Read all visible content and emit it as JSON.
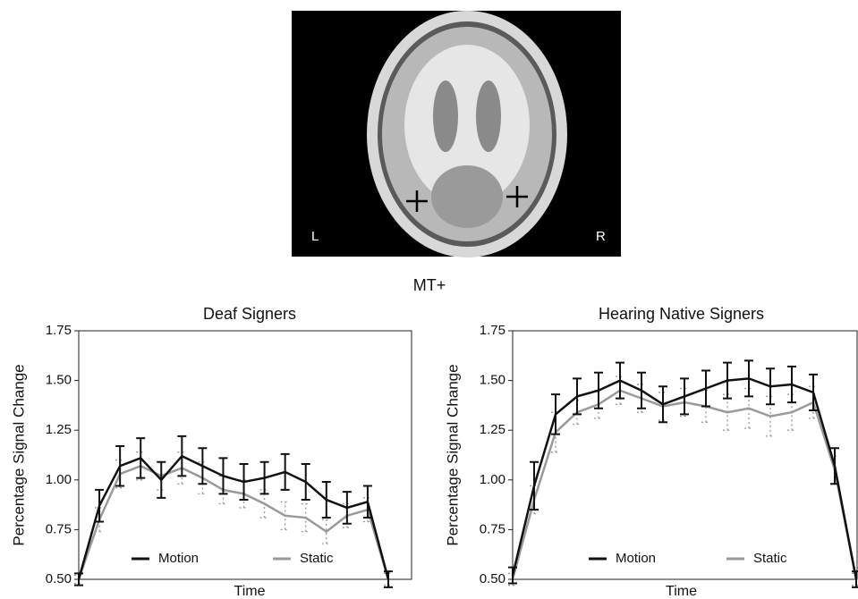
{
  "figure": {
    "title": "MT+",
    "image_labels": {
      "left": "L",
      "right": "R"
    }
  },
  "chart_data": [
    {
      "type": "line",
      "title": "Deaf Signers",
      "x_label": "Time",
      "y_label": "Percentage Signal Change",
      "categories": [
        null,
        null,
        null,
        null,
        null,
        null,
        null,
        null,
        null,
        null,
        null,
        null,
        null,
        null,
        null,
        null
      ],
      "series": [
        {
          "name": "Motion",
          "color": "#111111",
          "values": [
            0.5,
            0.87,
            1.07,
            1.11,
            1.0,
            1.12,
            1.07,
            1.02,
            0.99,
            1.01,
            1.04,
            0.99,
            0.9,
            0.86,
            0.89,
            0.5
          ],
          "errors": [
            0.03,
            0.08,
            0.1,
            0.1,
            0.09,
            0.1,
            0.09,
            0.09,
            0.09,
            0.08,
            0.09,
            0.09,
            0.09,
            0.08,
            0.08,
            0.04
          ]
        },
        {
          "name": "Static",
          "color": "#999999",
          "values": [
            0.5,
            0.8,
            1.03,
            1.07,
            1.02,
            1.06,
            1.01,
            0.95,
            0.93,
            0.88,
            0.82,
            0.81,
            0.74,
            0.82,
            0.85,
            0.5
          ],
          "errors": [
            0.02,
            0.06,
            0.07,
            0.07,
            0.07,
            0.08,
            0.08,
            0.07,
            0.07,
            0.07,
            0.07,
            0.07,
            0.06,
            0.06,
            0.06,
            0.03
          ]
        }
      ],
      "ylim": [
        0.5,
        1.75
      ],
      "yticks": [
        {
          "value": 0.5,
          "label": "0.50"
        },
        0.75,
        {
          "value": 1,
          "label": "1.00"
        },
        1.25,
        {
          "value": 1.5,
          "label": "1.50"
        },
        1.75
      ],
      "grid": false,
      "legend": "bottom"
    },
    {
      "type": "line",
      "title": "Hearing Native Signers",
      "x_label": "Time",
      "y_label": "Percentage Signal Change",
      "categories": [
        null,
        null,
        null,
        null,
        null,
        null,
        null,
        null,
        null,
        null,
        null,
        null,
        null,
        null,
        null,
        null,
        null
      ],
      "series": [
        {
          "name": "Motion",
          "color": "#111111",
          "values": [
            0.52,
            0.97,
            1.33,
            1.42,
            1.45,
            1.5,
            1.45,
            1.38,
            1.42,
            1.46,
            1.5,
            1.51,
            1.47,
            1.48,
            1.44,
            1.07,
            0.5
          ],
          "errors": [
            0.04,
            0.12,
            0.1,
            0.09,
            0.09,
            0.09,
            0.09,
            0.09,
            0.09,
            0.09,
            0.09,
            0.09,
            0.09,
            0.09,
            0.09,
            0.09,
            0.04
          ]
        },
        {
          "name": "Static",
          "color": "#999999",
          "values": [
            0.5,
            0.9,
            1.24,
            1.34,
            1.38,
            1.45,
            1.41,
            1.37,
            1.39,
            1.37,
            1.34,
            1.36,
            1.32,
            1.34,
            1.39,
            1.05,
            0.5
          ],
          "errors": [
            0.03,
            0.07,
            0.1,
            0.06,
            0.07,
            0.07,
            0.07,
            0.07,
            0.07,
            0.08,
            0.09,
            0.1,
            0.1,
            0.09,
            0.08,
            0.07,
            0.03
          ]
        }
      ],
      "ylim": [
        0.5,
        1.75
      ],
      "yticks": [
        {
          "value": 0.5,
          "label": "0.50"
        },
        0.75,
        {
          "value": 1,
          "label": "1.00"
        },
        1.25,
        {
          "value": 1.5,
          "label": "1.50"
        },
        1.75
      ],
      "grid": false,
      "legend": "bottom"
    }
  ]
}
